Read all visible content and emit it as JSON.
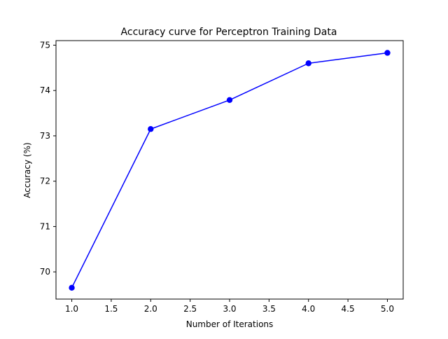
{
  "chart_data": {
    "type": "line",
    "title": "Accuracy curve for Perceptron Training Data",
    "xlabel": "Number of Iterations",
    "ylabel": "Accuracy (%)",
    "xlim": [
      0.8,
      5.2
    ],
    "ylim": [
      69.4,
      75.1
    ],
    "xticks": [
      1.0,
      1.5,
      2.0,
      2.5,
      3.0,
      3.5,
      4.0,
      4.5,
      5.0
    ],
    "xtick_labels": [
      "1.0",
      "1.5",
      "2.0",
      "2.5",
      "3.0",
      "3.5",
      "4.0",
      "4.5",
      "5.0"
    ],
    "yticks": [
      70,
      71,
      72,
      73,
      74,
      75
    ],
    "ytick_labels": [
      "70",
      "71",
      "72",
      "73",
      "74",
      "75"
    ],
    "grid": false,
    "legend": "none",
    "series": [
      {
        "color": "#0000ff",
        "marker": "circle",
        "x": [
          1,
          2,
          3,
          4,
          5
        ],
        "y": [
          69.65,
          73.15,
          73.79,
          74.6,
          74.83
        ]
      }
    ]
  }
}
